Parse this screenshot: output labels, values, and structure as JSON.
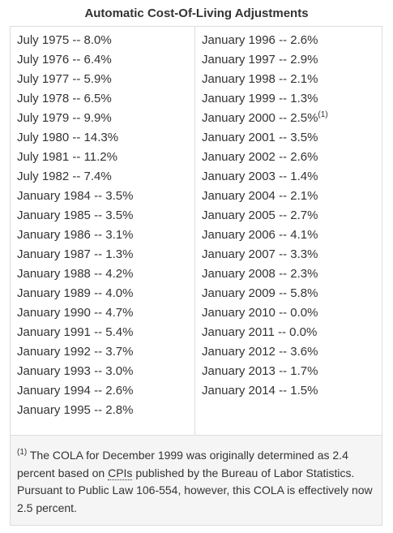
{
  "title": "Automatic Cost-Of-Living Adjustments",
  "left": [
    "July 1975 -- 8.0%",
    "July 1976 -- 6.4%",
    "July 1977 -- 5.9%",
    "July 1978 -- 6.5%",
    "July 1979 -- 9.9%",
    "July 1980 -- 14.3%",
    "July 1981 -- 11.2%",
    "July 1982 -- 7.4%",
    "January 1984 -- 3.5%",
    "January 1985 -- 3.5%",
    "January 1986 -- 3.1%",
    "January 1987 -- 1.3%",
    "January 1988 -- 4.2%",
    "January 1989 -- 4.0%",
    "January 1990 -- 4.7%",
    "January 1991 -- 5.4%",
    "January 1992 -- 3.7%",
    "January 1993 -- 3.0%",
    "January 1994 -- 2.6%",
    "January 1995 -- 2.8%"
  ],
  "right": [
    "January 1996 -- 2.6%",
    "January 1997 -- 2.9%",
    "January 1998 -- 2.1%",
    "January 1999 -- 1.3%",
    {
      "text": "January 2000 -- 2.5%",
      "note": "(1)"
    },
    "January 2001 -- 3.5%",
    "January 2002 -- 2.6%",
    "January 2003 -- 1.4%",
    "January 2004 -- 2.1%",
    "January 2005 -- 2.7%",
    "January 2006 -- 4.1%",
    "January 2007 -- 3.3%",
    "January 2008 -- 2.3%",
    "January 2009 -- 5.8%",
    "January 2010 -- 0.0%",
    "January 2011 -- 0.0%",
    "January 2012 -- 3.6%",
    "January 2013 -- 1.7%",
    "January 2014 -- 1.5%"
  ],
  "footnote": {
    "marker": "(1)",
    "before": " The COLA for December 1999 was originally determined as 2.4 percent based on ",
    "abbr": "CPIs",
    "after": " published by the Bureau of Labor Statistics. Pursuant to Public Law 106-554, however, this COLA is effectively now 2.5 percent."
  }
}
